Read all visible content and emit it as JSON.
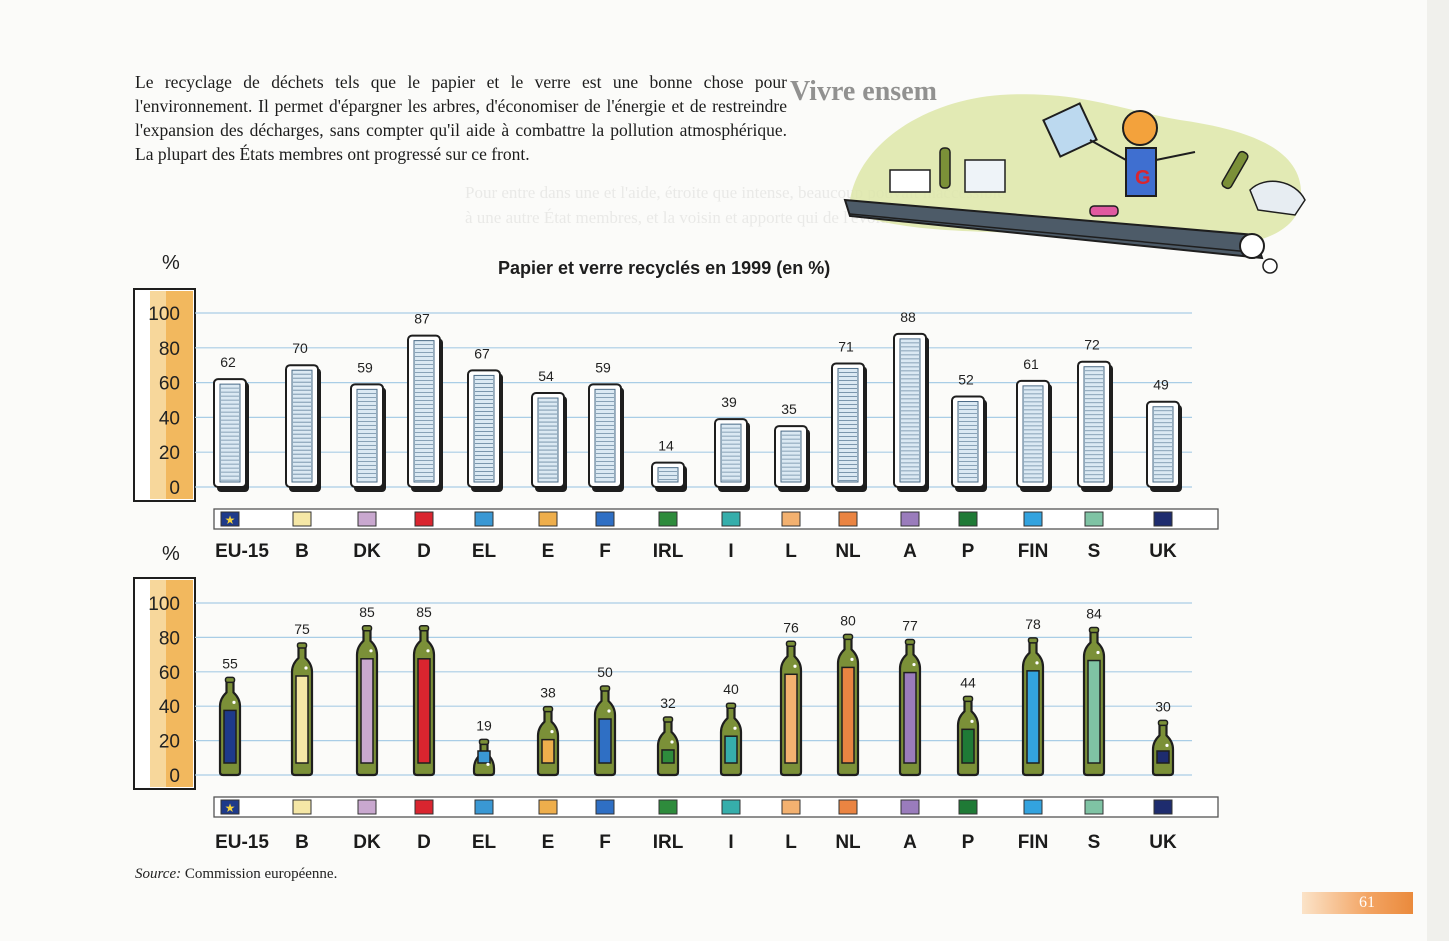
{
  "intro_text": "Le recyclage de déchets tels que le papier et le verre est une bonne chose pour l'environnement. Il permet d'épargner les arbres, d'économiser de l'énergie et de restreindre l'expansion des décharges, sans compter qu'il aide à combattre la pollution atmosphérique. La plupart des États membres ont progressé sur ce front.",
  "source": {
    "label": "Source:",
    "text": "Commission européenne."
  },
  "page_number": "61",
  "ghost_title": "Vivre ensem",
  "ghost_text": "Pour entre dans une et l'aide, étroite que intense, beaucoup pouvait inaccessible à une autre État membres, et la voisin et apporte qui de l'évolution",
  "axis_unit": "%",
  "colors": {
    "paper_fill": "#dbe9f3",
    "paper_stroke": "#1e1e1e",
    "bottle_fill": "#7b9038",
    "bottle_stroke": "#1e1e1e",
    "axis_band": "#f2b85e",
    "grid": "#a9cde6"
  },
  "chart_data": [
    {
      "type": "bar",
      "title": "Papier et verre recyclés en 1999 (en %)",
      "ylabel": "%",
      "ylim": [
        0,
        100
      ],
      "yticks": [
        "100",
        "80",
        "60",
        "40",
        "20",
        "0"
      ],
      "grid": true,
      "icon": "paper-stack",
      "categories": [
        "EU-15",
        "B",
        "DK",
        "D",
        "EL",
        "E",
        "F",
        "IRL",
        "I",
        "L",
        "NL",
        "A",
        "P",
        "FIN",
        "S",
        "UK"
      ],
      "values": [
        62,
        70,
        59,
        87,
        67,
        54,
        59,
        14,
        39,
        35,
        71,
        88,
        52,
        61,
        72,
        49
      ],
      "country_colors": [
        "#1e3a8a",
        "#f5e7a6",
        "#c9a8cf",
        "#d9252f",
        "#3a98d4",
        "#eeae4c",
        "#2f6fc4",
        "#2e8b3c",
        "#36aeab",
        "#f3b170",
        "#ea8442",
        "#9a7cbc",
        "#1f7a36",
        "#33a3df",
        "#7fc3a4",
        "#1e2c6e"
      ]
    },
    {
      "type": "bar",
      "title": "",
      "ylabel": "%",
      "ylim": [
        0,
        100
      ],
      "yticks": [
        "100",
        "80",
        "60",
        "40",
        "20",
        "0"
      ],
      "grid": true,
      "icon": "bottle",
      "categories": [
        "EU-15",
        "B",
        "DK",
        "D",
        "EL",
        "E",
        "F",
        "IRL",
        "I",
        "L",
        "NL",
        "A",
        "P",
        "FIN",
        "S",
        "UK"
      ],
      "values": [
        55,
        75,
        85,
        85,
        19,
        38,
        50,
        32,
        40,
        76,
        80,
        77,
        44,
        78,
        84,
        30
      ],
      "country_colors": [
        "#1e3a8a",
        "#f5e7a6",
        "#c9a8cf",
        "#d9252f",
        "#3a98d4",
        "#eeae4c",
        "#2f6fc4",
        "#2e8b3c",
        "#36aeab",
        "#f3b170",
        "#ea8442",
        "#9a7cbc",
        "#1f7a36",
        "#33a3df",
        "#7fc3a4",
        "#1e2c6e"
      ]
    }
  ]
}
